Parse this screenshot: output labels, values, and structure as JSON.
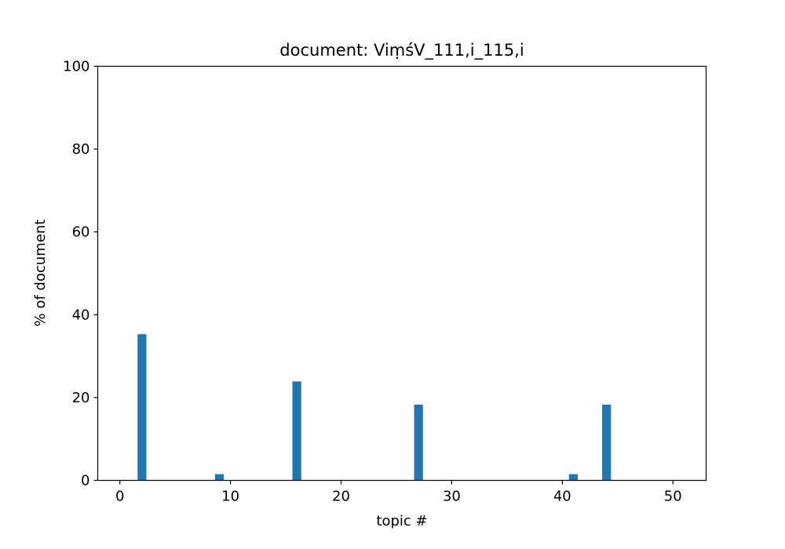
{
  "chart_data": {
    "type": "bar",
    "title": "document: ViṃśV_111,i_115,i",
    "xlabel": "topic #",
    "ylabel": "% of document",
    "xlim": [
      -2,
      53
    ],
    "ylim": [
      0,
      100
    ],
    "xticks": [
      0,
      10,
      20,
      30,
      40,
      50
    ],
    "yticks": [
      0,
      20,
      40,
      60,
      80,
      100
    ],
    "grid": false,
    "color": "#1f77b4",
    "x": [
      0,
      1,
      2,
      3,
      4,
      5,
      6,
      7,
      8,
      9,
      10,
      11,
      12,
      13,
      14,
      15,
      16,
      17,
      18,
      19,
      20,
      21,
      22,
      23,
      24,
      25,
      26,
      27,
      28,
      29,
      30,
      31,
      32,
      33,
      34,
      35,
      36,
      37,
      38,
      39,
      40,
      41,
      42,
      43,
      44,
      45,
      46,
      47,
      48,
      49,
      50
    ],
    "values": [
      0,
      0,
      35.3,
      0,
      0,
      0,
      0,
      0,
      0,
      1.5,
      0,
      0,
      0,
      0,
      0,
      0,
      23.9,
      0,
      0,
      0,
      0,
      0,
      0,
      0,
      0,
      0,
      0,
      18.3,
      0,
      0,
      0,
      0,
      0,
      0,
      0,
      0,
      0,
      0,
      0,
      0,
      0,
      1.5,
      0,
      0,
      18.3,
      0,
      0,
      0,
      0,
      0,
      0
    ]
  }
}
